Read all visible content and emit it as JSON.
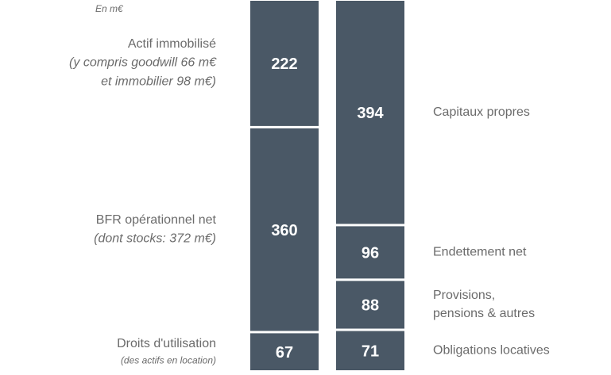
{
  "chart_data": {
    "type": "stacked_column",
    "unit": "En m€",
    "color": "#4a5866",
    "columns": [
      {
        "side": "left",
        "segments": [
          {
            "value": 222,
            "label": [
              "Actif immobilisé"
            ],
            "note": [
              "(y compris goodwill 66 m€",
              "et immobilier 98 m€)"
            ]
          },
          {
            "value": 360,
            "label": [
              "BFR opérationnel net"
            ],
            "note": [
              "(dont stocks: 372 m€)"
            ]
          },
          {
            "value": 67,
            "label": [
              "Droits d'utilisation"
            ],
            "small_note": [
              "(des actifs en location)"
            ]
          }
        ]
      },
      {
        "side": "right",
        "segments": [
          {
            "value": 394,
            "label": [
              "Capitaux propres"
            ]
          },
          {
            "value": 96,
            "label": [
              "Endettement net"
            ]
          },
          {
            "value": 88,
            "label": [
              "Provisions,",
              "pensions & autres"
            ]
          },
          {
            "value": 71,
            "label": [
              "Obligations locatives"
            ]
          }
        ]
      }
    ]
  }
}
